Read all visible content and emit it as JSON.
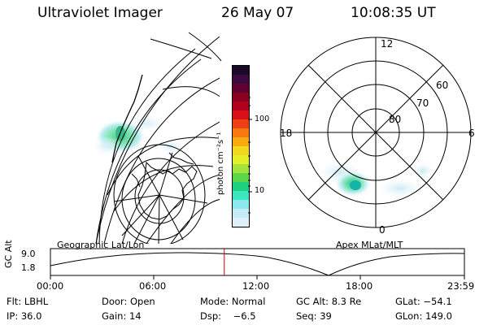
{
  "header": {
    "instrument": "Ultraviolet Imager",
    "date": "26 May 07",
    "time": "10:08:35 UT"
  },
  "colorbar": {
    "title": "photon cm⁻²s⁻¹",
    "ticks": [
      "100",
      "10"
    ],
    "colors": [
      "#1a0a2a",
      "#3a0a40",
      "#600030",
      "#8a0020",
      "#b0001c",
      "#d8101a",
      "#ee4015",
      "#f67a10",
      "#f8aa10",
      "#f4d820",
      "#e4f028",
      "#a4e43a",
      "#5ad84a",
      "#1fd080",
      "#3ce6c0",
      "#8ee8f0",
      "#c4ecf6",
      "#e0f0f8"
    ]
  },
  "left_panel": {
    "label": "Geographic Lat/Lon"
  },
  "right_panel": {
    "label": "Apex MLat/MLT",
    "mlt_labels": {
      "top": "12",
      "left": "18",
      "right": "6",
      "bottom": "0"
    },
    "lat_labels": [
      "60",
      "70",
      "80"
    ]
  },
  "timeline": {
    "ylabel": "GC Alt",
    "ytick_top": "9.0",
    "ytick_bottom": "1.8",
    "xticks": [
      "00:00",
      "06:00",
      "12:00",
      "18:00",
      "23:59"
    ],
    "current_time_fraction": 0.42,
    "marker_color": "#cc0000"
  },
  "footer": {
    "row1": {
      "filter": "Flt: LBHL",
      "door": "Door: Open",
      "mode": "Mode: Normal",
      "gc_alt": "GC Alt: 8.3 Re",
      "glat": "GLat: −54.1"
    },
    "row2": {
      "ip": "IP: 36.0",
      "gain": "Gain: 14",
      "dsp": "Dsp:    −6.5",
      "seq": "Seq: 39",
      "glon": "GLon: 149.0"
    }
  }
}
